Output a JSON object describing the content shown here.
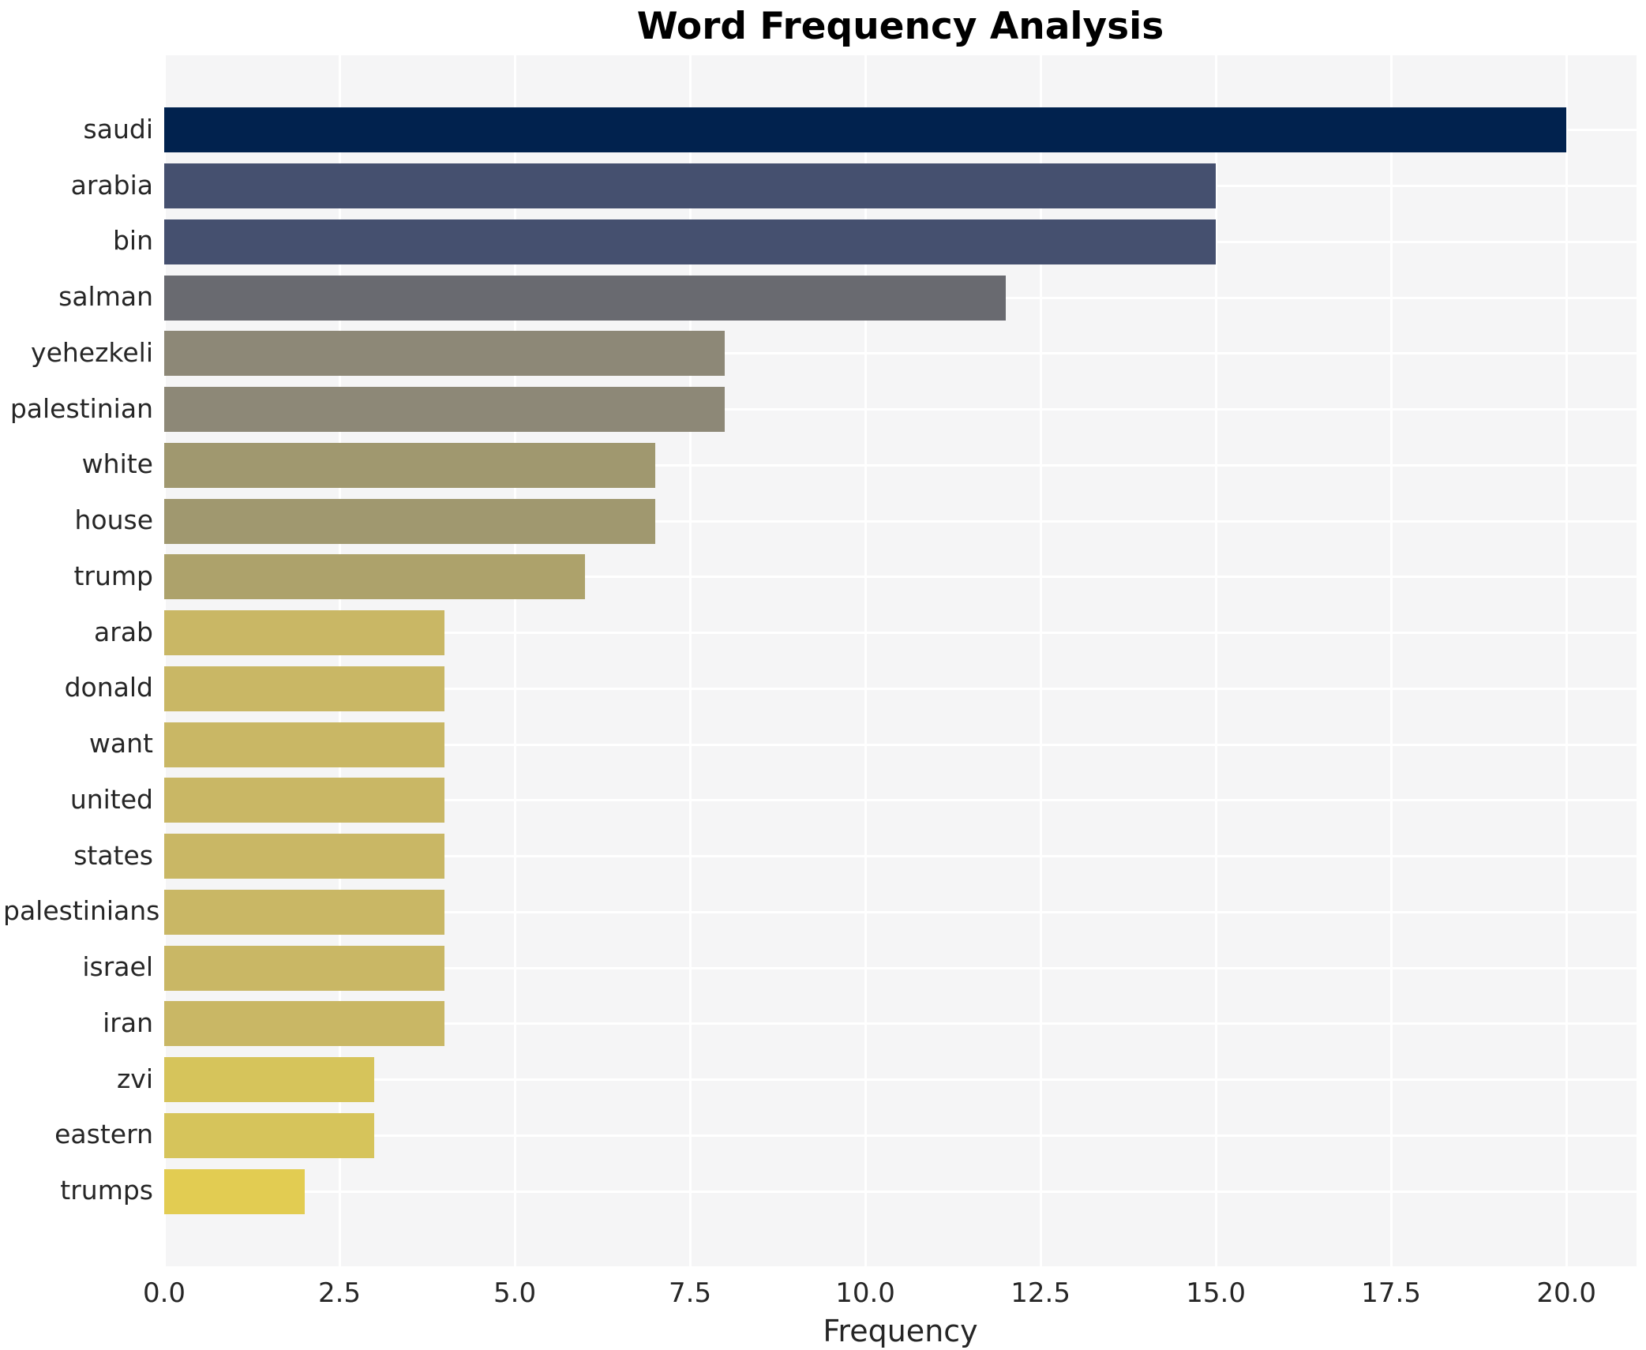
{
  "chart_data": {
    "type": "bar",
    "orientation": "horizontal",
    "title": "Word Frequency Analysis",
    "xlabel": "Frequency",
    "ylabel": "",
    "xlim": [
      0,
      21
    ],
    "xticks": [
      "0.0",
      "2.5",
      "5.0",
      "7.5",
      "10.0",
      "12.5",
      "15.0",
      "17.5",
      "20.0"
    ],
    "xtick_values": [
      0,
      2.5,
      5,
      7.5,
      10,
      12.5,
      15,
      17.5,
      20
    ],
    "grid": true,
    "legend": false,
    "plot_background": "#f5f5f6",
    "grid_color": "#ffffff",
    "categories": [
      "saudi",
      "arabia",
      "bin",
      "salman",
      "yehezkeli",
      "palestinian",
      "white",
      "house",
      "trump",
      "arab",
      "donald",
      "want",
      "united",
      "states",
      "palestinians",
      "israel",
      "iran",
      "zvi",
      "eastern",
      "trumps"
    ],
    "values": [
      20,
      15,
      15,
      12,
      8,
      8,
      7,
      7,
      6,
      4,
      4,
      4,
      4,
      4,
      4,
      4,
      4,
      3,
      3,
      2
    ],
    "bar_colors": [
      "#01224e",
      "#45506f",
      "#45506f",
      "#696a70",
      "#8d8877",
      "#8d8877",
      "#a0986f",
      "#a0986f",
      "#ada26b",
      "#c9b765",
      "#c9b765",
      "#c9b765",
      "#c9b765",
      "#c9b765",
      "#c9b765",
      "#c9b765",
      "#c9b765",
      "#d6c45b",
      "#d6c45b",
      "#e2cc52"
    ]
  }
}
